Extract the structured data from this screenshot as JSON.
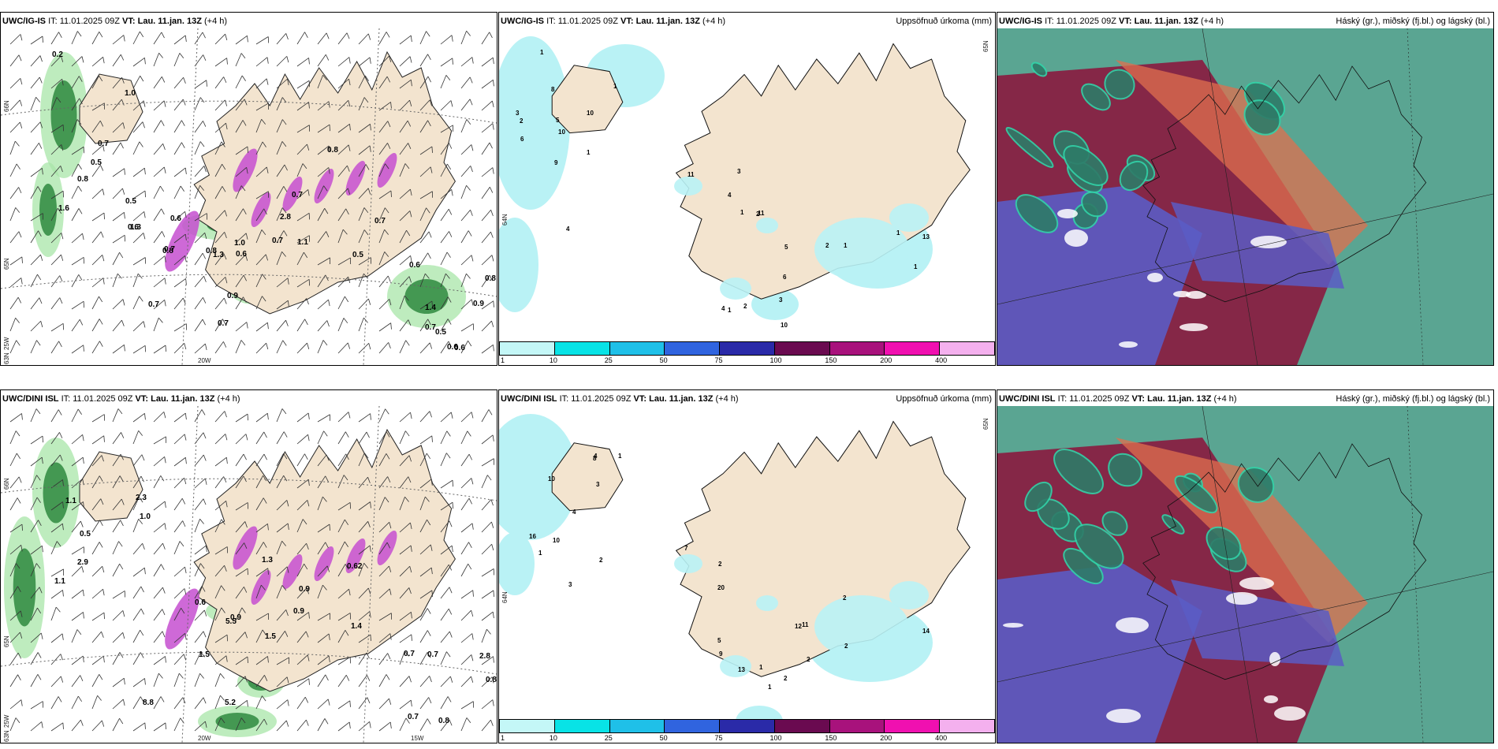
{
  "rows": [
    {
      "model": "UWC/IG-IS",
      "meta": "IT: 11.01.2025 09Z",
      "vt_label": "VT:",
      "vt": "Lau. 11.jan. 13Z",
      "lead": "(+4 h)",
      "panels": {
        "wind": {
          "axis_labels": [
            "66N",
            "65N",
            "63N",
            "25W",
            "20W"
          ],
          "values": [
            "0.5",
            "0.8",
            "0.6",
            "0.7",
            "1.3",
            "0.6",
            "0.5",
            "2.8",
            "0.8",
            "1.3",
            "0.9",
            "0.8",
            "0.2",
            "0.7",
            "1.4",
            "0.5",
            "0.7",
            "1.0",
            "0.8",
            "0.7",
            "0.6",
            "0.7",
            "0.6",
            "0.7",
            "0.5",
            "0.8",
            "0.6",
            "0.6",
            "1.0",
            "0.7",
            "0.7",
            "1.1",
            "1.6",
            "0.9"
          ]
        },
        "precip": {
          "title": "Uppsöfnuð úrkoma (mm)",
          "axis_labels": [
            "65N",
            "64N"
          ],
          "values": [
            "1",
            "1",
            "2",
            "1",
            "3",
            "6",
            "8",
            "4",
            "5",
            "6",
            "10",
            "9",
            "11",
            "2",
            "10",
            "4",
            "1",
            "3",
            "1",
            "2",
            "2",
            "5",
            "11",
            "13",
            "4",
            "3",
            "10",
            "1",
            "1",
            "1"
          ],
          "scale": [
            "1",
            "10",
            "25",
            "50",
            "75",
            "100",
            "150",
            "200",
            "400"
          ]
        },
        "cloud": {
          "title": "Háský (gr.), miðský (fj.bl.) og lágský (bl.)"
        }
      }
    },
    {
      "model": "UWC/DINI ISL",
      "meta": "IT: 11.01.2025 09Z",
      "vt_label": "VT:",
      "vt": "Lau. 11.jan. 13Z",
      "lead": "(+4 h)",
      "panels": {
        "wind": {
          "axis_labels": [
            "66N",
            "65N",
            "63N",
            "25W",
            "20W",
            "15W"
          ],
          "values": [
            "1.0",
            "0.6",
            "0.8",
            "1.4",
            "2.9",
            "5.5",
            "2.8",
            "0.9",
            "1.1",
            "8.8",
            "0.7",
            "0.9",
            "0.5",
            "5.2",
            "0.7",
            "1.3",
            "2.3",
            "1.5",
            "0.8",
            "0.62",
            "1.1",
            "0.9",
            "0.7",
            "1.5"
          ]
        },
        "precip": {
          "title": "Uppsöfnuð úrkoma (mm)",
          "axis_labels": [
            "65N",
            "64N"
          ],
          "values": [
            "3",
            "4",
            "5",
            "12",
            "13",
            "16",
            "10",
            "20",
            "11",
            "2",
            "2",
            "1",
            "9",
            "2",
            "1",
            "3",
            "8",
            "7",
            "14",
            "1",
            "4",
            "10",
            "2",
            "2",
            "2",
            "1"
          ],
          "scale": [
            "1",
            "10",
            "25",
            "50",
            "75",
            "100",
            "150",
            "200",
            "400"
          ]
        },
        "cloud": {
          "title": "Háský (gr.), miðský (fj.bl.) og lágský (bl.)"
        }
      }
    }
  ],
  "colors": {
    "land": "#f3e4cf",
    "sea": "#ffffff",
    "precip_light": "#b9f2f5",
    "wind_green": "#2f8a3f",
    "wind_magenta": "#c64fd0",
    "cloud_high": "#2e7b68",
    "cloud_mid": "#8a1a3f",
    "cloud_low": "#5b5cc4",
    "scale": [
      "#c4f7f7",
      "#08e3e6",
      "#1fc0e8",
      "#3064df",
      "#2a2aa8",
      "#6a0a50",
      "#a8127c",
      "#f010b0",
      "#f4b0ee"
    ]
  }
}
